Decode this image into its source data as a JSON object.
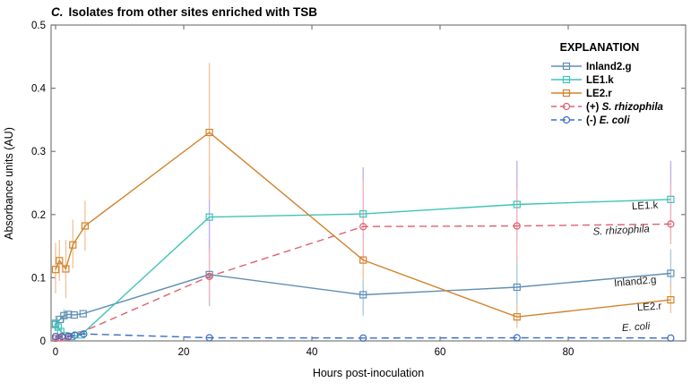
{
  "chart_data": {
    "type": "line",
    "title_prefix": "C.",
    "title_rest": "Isolates from other sites enriched with TSB",
    "title": "C. Isolates from other sites enriched with TSB",
    "xlabel": "Hours post-inoculation",
    "ylabel": "Absorbance units (AU)",
    "xlim": [
      -0.7,
      98.3
    ],
    "ylim": [
      0,
      0.5
    ],
    "x_ticks": [
      0,
      20,
      40,
      60,
      80
    ],
    "y_ticks": [
      0,
      0.1,
      0.2,
      0.3,
      0.4,
      0.5
    ],
    "grid": false,
    "legend_title": "EXPLANATION",
    "legend_position": "top-right-inside",
    "series": [
      {
        "id": "inland2g",
        "label": "Inland2.g",
        "label_prefix": "",
        "label_italic": false,
        "color": "#5f8fb4",
        "error_color": "#b0c9dc",
        "line_style": "solid",
        "marker": "square",
        "points": [
          [
            0,
            0.026
          ],
          [
            0.7,
            0.034
          ],
          [
            1.3,
            0.04
          ],
          [
            2,
            0.042
          ],
          [
            2.9,
            0.041
          ],
          [
            4.3,
            0.043
          ],
          [
            24,
            0.105
          ],
          [
            48,
            0.073
          ],
          [
            72,
            0.085
          ],
          [
            96,
            0.107
          ]
        ],
        "error_bars": [
          [
            1.3,
            0.03,
            0.05
          ],
          [
            24,
            0.055,
            0.16
          ],
          [
            48,
            0.04,
            0.11
          ],
          [
            72,
            0.048,
            0.125
          ],
          [
            96,
            0.075,
            0.145
          ]
        ],
        "annotation": {
          "text": "Inland2.g",
          "x": 90.5,
          "y": 0.089,
          "italic": false,
          "rotate": -5
        }
      },
      {
        "id": "le1k",
        "label": "LE1.k",
        "label_prefix": "",
        "label_italic": false,
        "color": "#3fc4b7",
        "error_color": "#c4b2e0",
        "line_style": "solid",
        "marker": "square",
        "points": [
          [
            0,
            0.028
          ],
          [
            0.4,
            0.022
          ],
          [
            0.8,
            0.015
          ],
          [
            1.5,
            0.008
          ],
          [
            2.5,
            0.007
          ],
          [
            4,
            0.0095
          ],
          [
            24,
            0.196
          ],
          [
            48,
            0.201
          ],
          [
            72,
            0.216
          ],
          [
            96,
            0.224
          ]
        ],
        "error_bars": [
          [
            0,
            0.016,
            0.04
          ],
          [
            24,
            0.14,
            0.26
          ],
          [
            48,
            0.13,
            0.275
          ],
          [
            72,
            0.155,
            0.285
          ],
          [
            96,
            0.16,
            0.285
          ]
        ],
        "annotation": {
          "text": "LE1.k",
          "x": 92,
          "y": 0.209,
          "italic": false,
          "rotate": -3
        }
      },
      {
        "id": "le2r",
        "label": "LE2.r",
        "label_prefix": "",
        "label_italic": false,
        "color": "#d3832b",
        "error_color": "#f0c79c",
        "line_style": "solid",
        "marker": "square",
        "points": [
          [
            0,
            0.113
          ],
          [
            0.6,
            0.127
          ],
          [
            1.6,
            0.114
          ],
          [
            2.7,
            0.152
          ],
          [
            4.6,
            0.182
          ],
          [
            24,
            0.33
          ],
          [
            48,
            0.128
          ],
          [
            72,
            0.038
          ],
          [
            96,
            0.065
          ]
        ],
        "error_bars": [
          [
            0,
            0.075,
            0.155
          ],
          [
            0.6,
            0.095,
            0.16
          ],
          [
            1.6,
            0.068,
            0.16
          ],
          [
            2.7,
            0.115,
            0.192
          ],
          [
            4.6,
            0.143,
            0.222
          ],
          [
            24,
            0.224,
            0.44
          ],
          [
            48,
            0.095,
            0.168
          ],
          [
            72,
            0.02,
            0.06
          ],
          [
            96,
            0.044,
            0.09
          ]
        ],
        "annotation": {
          "text": "LE2.r",
          "x": 92.7,
          "y": 0.049,
          "italic": false,
          "rotate": -4
        }
      },
      {
        "id": "rhizophila",
        "label": "S. rhizophila",
        "label_prefix": "(+) ",
        "label_italic": true,
        "color": "#e0606e",
        "error_color": "#f4b6c0",
        "line_style": "dashed",
        "marker": "circle",
        "points": [
          [
            0,
            0.004
          ],
          [
            0.6,
            0.005
          ],
          [
            1.2,
            0.005
          ],
          [
            2,
            0.006
          ],
          [
            3,
            0.009
          ],
          [
            24,
            0.102
          ],
          [
            48,
            0.181
          ],
          [
            72,
            0.182
          ],
          [
            96,
            0.185
          ]
        ],
        "error_bars": [
          [
            24,
            0.062,
            0.147
          ],
          [
            48,
            0.122,
            0.254
          ],
          [
            72,
            0.125,
            0.242
          ],
          [
            96,
            0.153,
            0.246
          ]
        ],
        "annotation": {
          "text": "S. rhizophila",
          "x": 88.3,
          "y": 0.17,
          "italic": true,
          "rotate": -3
        }
      },
      {
        "id": "ecoli",
        "label": "E. coli",
        "label_prefix": "(-) ",
        "label_italic": true,
        "color": "#3b6cc9",
        "error_color": "#9db9e8",
        "line_style": "dashed",
        "marker": "circle",
        "points": [
          [
            0,
            0.007
          ],
          [
            1,
            0.007
          ],
          [
            2,
            0.0075
          ],
          [
            3,
            0.009
          ],
          [
            4.4,
            0.011
          ],
          [
            24,
            0.005
          ],
          [
            48,
            0.0045
          ],
          [
            72,
            0.005
          ],
          [
            96,
            0.0045
          ]
        ],
        "error_bars": [],
        "annotation": {
          "text": "E. coli",
          "x": 90.6,
          "y": 0.017,
          "italic": true,
          "rotate": -4
        }
      }
    ]
  }
}
